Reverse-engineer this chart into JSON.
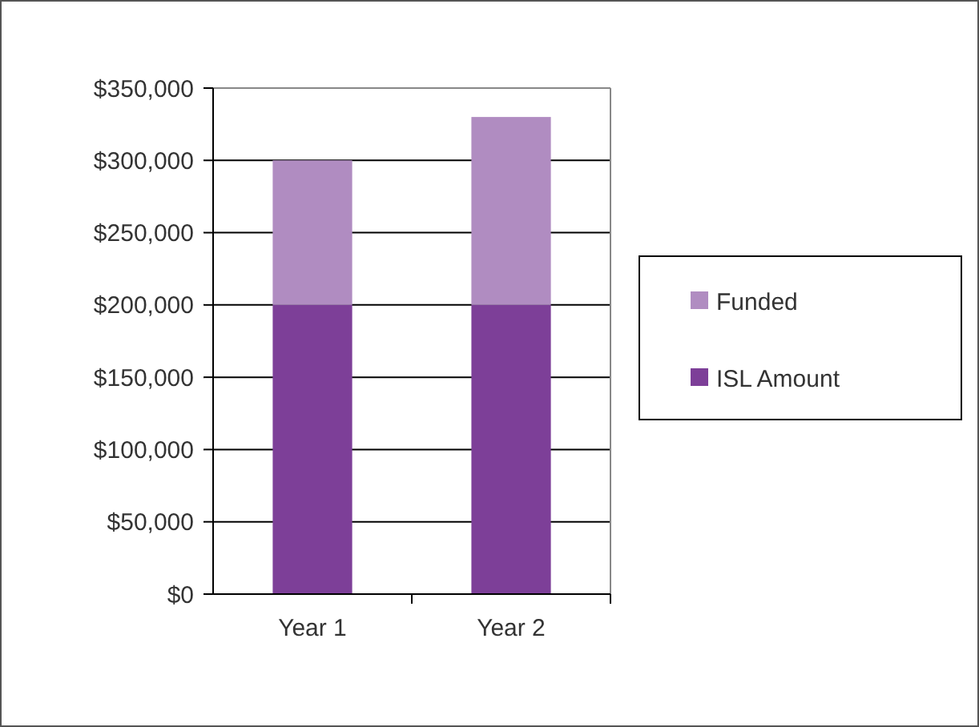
{
  "chart_data": {
    "type": "bar",
    "stacked": true,
    "categories": [
      "Year 1",
      "Year 2"
    ],
    "series": [
      {
        "name": "ISL Amount",
        "color": "#7d3f98",
        "values": [
          200000,
          200000
        ]
      },
      {
        "name": "Funded",
        "color": "#b08cc1",
        "values": [
          100000,
          130000
        ]
      }
    ],
    "ylim": [
      0,
      350000
    ],
    "yticks": [
      {
        "value": 0,
        "label": "$0"
      },
      {
        "value": 50000,
        "label": "$50,000"
      },
      {
        "value": 100000,
        "label": "$100,000"
      },
      {
        "value": 150000,
        "label": "$150,000"
      },
      {
        "value": 200000,
        "label": "$200,000"
      },
      {
        "value": 250000,
        "label": "$250,000"
      },
      {
        "value": 300000,
        "label": "$300,000"
      },
      {
        "value": 350000,
        "label": "$350,000"
      }
    ],
    "grid": "y",
    "legend": "right"
  }
}
